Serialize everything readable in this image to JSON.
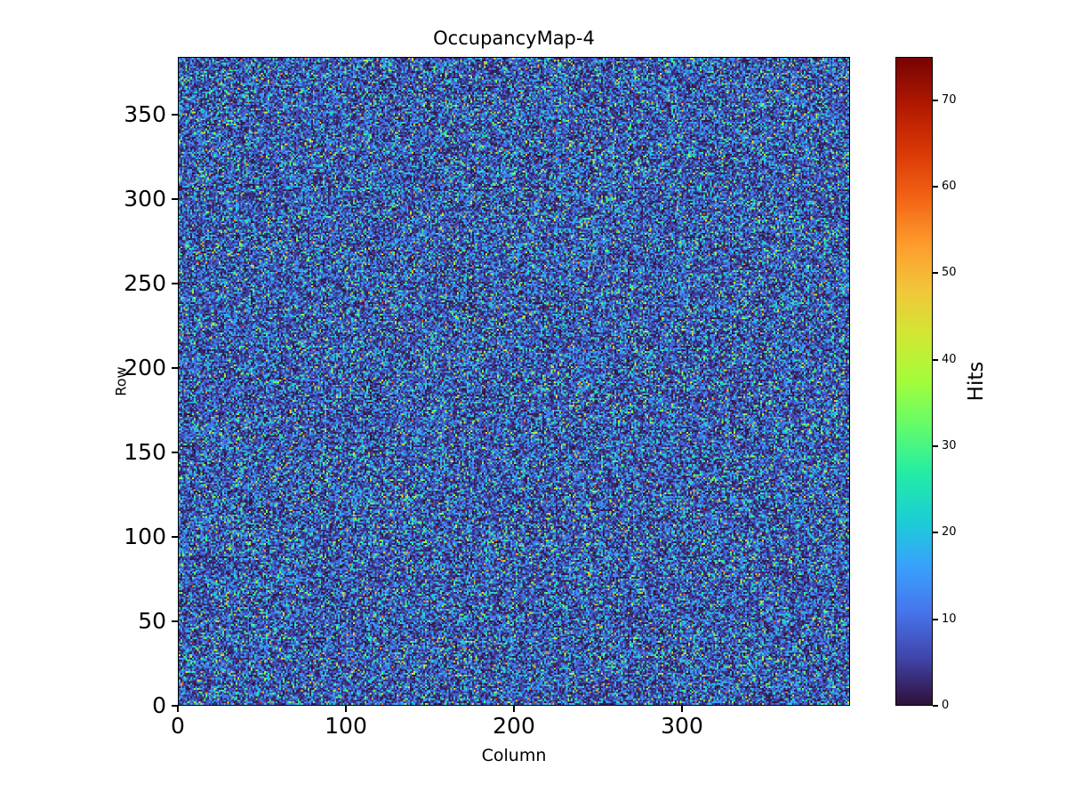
{
  "chart_data": {
    "type": "heatmap",
    "title": "OccupancyMap-4",
    "xlabel": "Column",
    "ylabel": "Row",
    "colorbar_label": "Hits",
    "ncols": 400,
    "nrows": 384,
    "xlim": [
      0,
      400
    ],
    "ylim": [
      0,
      384
    ],
    "vmin": 0,
    "vmax": 75,
    "x_ticks": [
      0,
      100,
      200,
      300
    ],
    "y_ticks": [
      0,
      50,
      100,
      150,
      200,
      250,
      300,
      350
    ],
    "colorbar_ticks": [
      0,
      10,
      20,
      30,
      40,
      50,
      60,
      70
    ],
    "colormap": "turbo",
    "colormap_stops": [
      "#30123b",
      "#4145ab",
      "#4675ed",
      "#39a2fc",
      "#1bcfd4",
      "#24eca6",
      "#61fc6c",
      "#a4fc3b",
      "#d1e834",
      "#f3c63a",
      "#fe9b2d",
      "#f36315",
      "#d93806",
      "#b11901",
      "#7a0403"
    ],
    "grid": false,
    "legend": "colorbar-right",
    "data_description": "Per-pixel hit counts over a 400x384 pixel matrix; spatially uniform random noise. Most pixels have low counts (dark blue/navy), with frequent blue/cyan pixels and sparse green/yellow speckles up to the colorbar maximum of ~75.",
    "distribution": {
      "kind": "exponential",
      "mean": 10,
      "seed": 42
    },
    "colors": {
      "background": "#ffffff",
      "text": "#000000",
      "axes": "#000000"
    }
  }
}
